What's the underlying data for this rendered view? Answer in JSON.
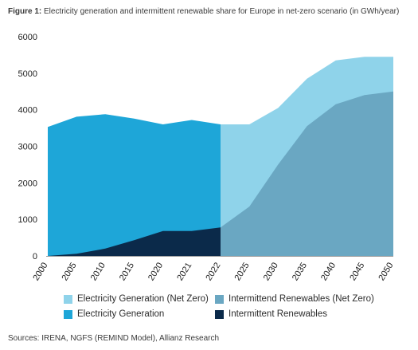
{
  "figure": {
    "title_label": "Figure 1:",
    "title_text": "Electricity generation and intermittent renewable share for Europe in net-zero scenario (in GWh/year)",
    "source": "Sources: IRENA, NGFS (REMIND Model), Allianz Research"
  },
  "chart_data": {
    "type": "area",
    "categories": [
      "2000",
      "2005",
      "2010",
      "2015",
      "2020",
      "2021",
      "2022",
      "2025",
      "2030",
      "2035",
      "2040",
      "2045",
      "2050"
    ],
    "ylim": [
      0,
      6000
    ],
    "yticks": [
      0,
      1000,
      2000,
      3000,
      4000,
      5000,
      6000
    ],
    "ytick_labels": [
      "0",
      "1000",
      "2000",
      "3000",
      "4000",
      "5000",
      "6000"
    ],
    "series": [
      {
        "name": "Electricity Generation (Net Zero)",
        "color": "#8fd3ea",
        "values": [
          null,
          null,
          null,
          null,
          null,
          null,
          3600,
          3600,
          4050,
          4850,
          5350,
          5450,
          5450
        ]
      },
      {
        "name": "Intermittend Renewables (Net Zero)",
        "color": "#6aa7c2",
        "values": [
          null,
          null,
          null,
          null,
          null,
          null,
          780,
          1350,
          2500,
          3550,
          4150,
          4400,
          4500
        ]
      },
      {
        "name": "Electricity Generation",
        "color": "#1ea6d8",
        "values": [
          3530,
          3810,
          3880,
          3760,
          3600,
          3720,
          3600,
          null,
          null,
          null,
          null,
          null,
          null
        ]
      },
      {
        "name": "Intermittent Renewables",
        "color": "#0b2a4a",
        "values": [
          0,
          60,
          200,
          430,
          680,
          680,
          780,
          null,
          null,
          null,
          null,
          null,
          null
        ]
      }
    ],
    "legend": [
      [
        "Electricity Generation (Net Zero)",
        "Intermittend Renewables (Net Zero)"
      ],
      [
        "Electricity Generation",
        "Intermittent Renewables"
      ]
    ],
    "grid": false,
    "legend_position": "bottom"
  }
}
